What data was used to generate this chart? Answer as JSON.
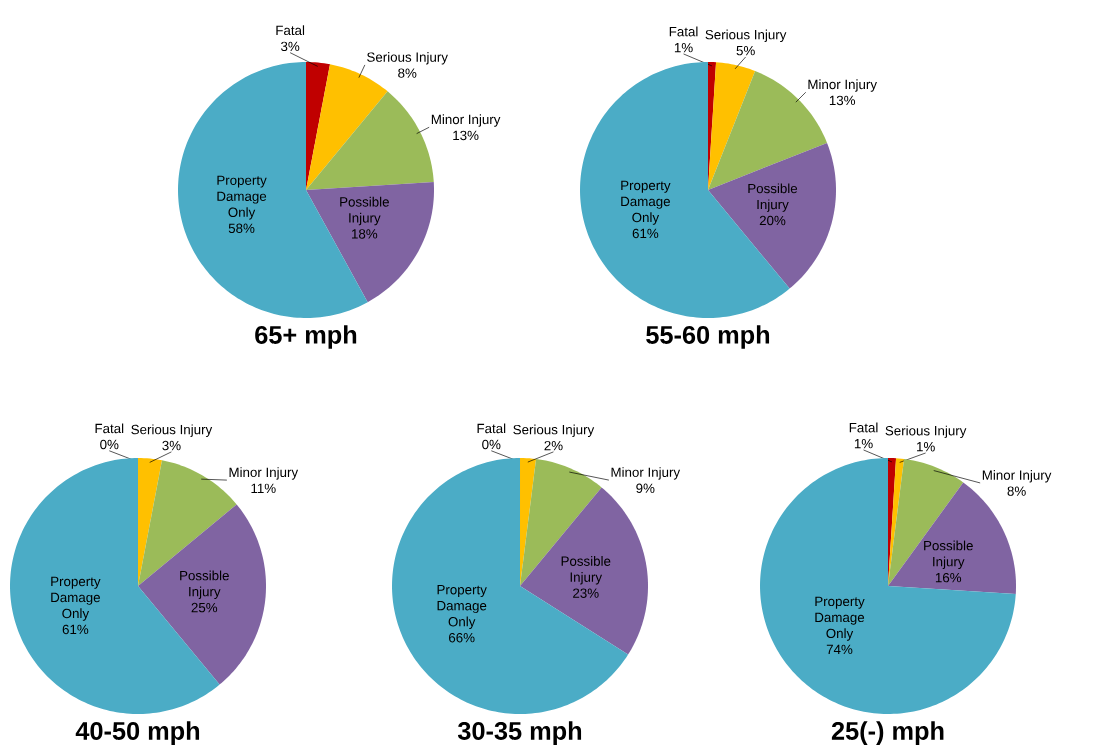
{
  "chart_data": [
    {
      "type": "pie",
      "title": "65+ mph",
      "categories": [
        "Fatal",
        "Serious Injury",
        "Minor Injury",
        "Possible Injury",
        "Property Damage Only"
      ],
      "values": [
        3,
        8,
        13,
        18,
        58
      ],
      "value_labels": [
        "3%",
        "8%",
        "13%",
        "18%",
        "58%"
      ],
      "colors": [
        "#c00000",
        "#ffc000",
        "#9bbb59",
        "#8064a2",
        "#4bacc6"
      ]
    },
    {
      "type": "pie",
      "title": "55-60 mph",
      "categories": [
        "Fatal",
        "Serious Injury",
        "Minor Injury",
        "Possible Injury",
        "Property Damage Only"
      ],
      "values": [
        1,
        5,
        13,
        20,
        61
      ],
      "value_labels": [
        "1%",
        "5%",
        "13%",
        "20%",
        "61%"
      ],
      "colors": [
        "#c00000",
        "#ffc000",
        "#9bbb59",
        "#8064a2",
        "#4bacc6"
      ]
    },
    {
      "type": "pie",
      "title": "40-50 mph",
      "categories": [
        "Fatal",
        "Serious Injury",
        "Minor Injury",
        "Possible Injury",
        "Property Damage Only"
      ],
      "values": [
        0,
        3,
        11,
        25,
        61
      ],
      "value_labels": [
        "0%",
        "3%",
        "11%",
        "25%",
        "61%"
      ],
      "colors": [
        "#c00000",
        "#ffc000",
        "#9bbb59",
        "#8064a2",
        "#4bacc6"
      ]
    },
    {
      "type": "pie",
      "title": "30-35 mph",
      "categories": [
        "Fatal",
        "Serious Injury",
        "Minor Injury",
        "Possible Injury",
        "Property Damage Only"
      ],
      "values": [
        0,
        2,
        9,
        23,
        66
      ],
      "value_labels": [
        "0%",
        "2%",
        "9%",
        "23%",
        "66%"
      ],
      "colors": [
        "#c00000",
        "#ffc000",
        "#9bbb59",
        "#8064a2",
        "#4bacc6"
      ]
    },
    {
      "type": "pie",
      "title": "25(-) mph",
      "categories": [
        "Fatal",
        "Serious Injury",
        "Minor Injury",
        "Possible Injury",
        "Property Damage Only"
      ],
      "values": [
        1,
        1,
        8,
        16,
        74
      ],
      "value_labels": [
        "1%",
        "1%",
        "8%",
        "16%",
        "74%"
      ],
      "colors": [
        "#c00000",
        "#ffc000",
        "#9bbb59",
        "#8064a2",
        "#4bacc6"
      ]
    }
  ]
}
